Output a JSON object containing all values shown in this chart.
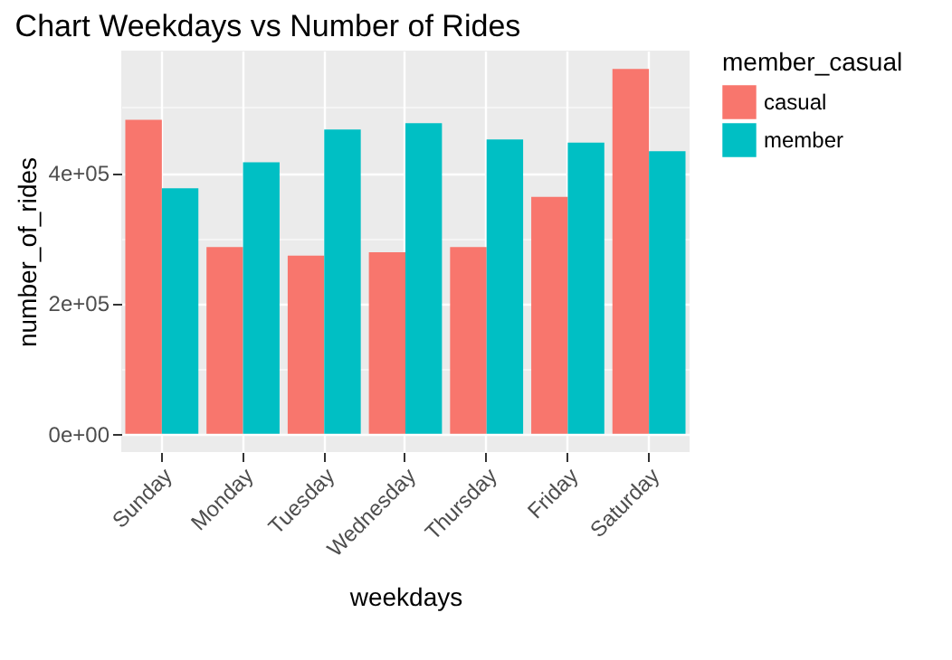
{
  "chart_data": {
    "type": "bar",
    "title": "Chart Weekdays vs Number of Rides",
    "xlabel": "weekdays",
    "ylabel": "number_of_rides",
    "legend_title": "member_casual",
    "legend": "right",
    "categories": [
      "Sunday",
      "Monday",
      "Tuesday",
      "Wednesday",
      "Thursday",
      "Friday",
      "Saturday"
    ],
    "series": [
      {
        "name": "casual",
        "color": "#f8766d",
        "values": [
          481000,
          286000,
          273000,
          278000,
          286000,
          363000,
          559000
        ]
      },
      {
        "name": "member",
        "color": "#00bfc4",
        "values": [
          376000,
          416000,
          466000,
          476000,
          451000,
          446000,
          433000
        ]
      }
    ],
    "ylim": [
      -28000,
      587000
    ],
    "yticks": [
      {
        "value": 0,
        "label": "0e+00"
      },
      {
        "value": 100000,
        "label": null
      },
      {
        "value": 200000,
        "label": "2e+05"
      },
      {
        "value": 300000,
        "label": null
      },
      {
        "value": 400000,
        "label": "4e+05"
      },
      {
        "value": 500000,
        "label": null
      }
    ],
    "grid": true
  }
}
